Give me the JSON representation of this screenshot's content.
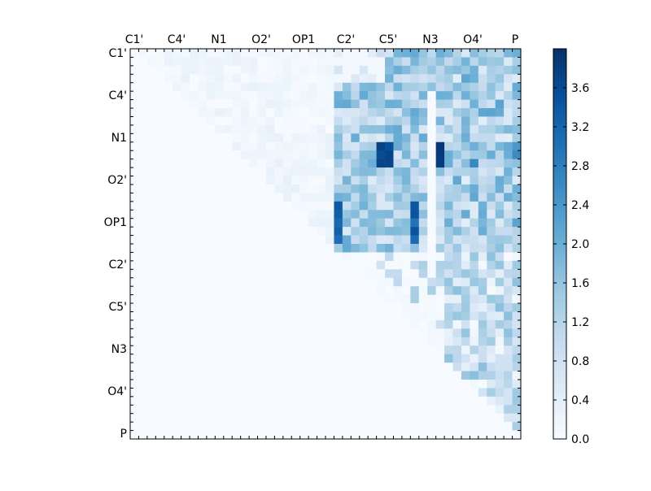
{
  "chart_data": [
    {
      "type": "heatmap",
      "title": "",
      "xlabel": "",
      "ylabel": "",
      "atoms": [
        "C1'",
        "C4'",
        "N1",
        "O2'",
        "OP1",
        "C2'",
        "C5'",
        "N3",
        "O4'",
        "P"
      ],
      "x_tick_labels": [
        "C1'",
        "C4'",
        "N1",
        "O2'",
        "OP1",
        "C2'",
        "C5'",
        "N3",
        "O4'",
        "P"
      ],
      "y_tick_labels": [
        "C1'",
        "C4'",
        "N1",
        "O2'",
        "OP1",
        "C2'",
        "C5'",
        "N3",
        "O4'",
        "P"
      ],
      "x_ticks_position": "top",
      "grid_rows": 46,
      "grid_cols": 46,
      "colormap": "Blues",
      "color_range": [
        0.0,
        4.0
      ],
      "matrix_shape": "upper-triangular",
      "blocks": [
        {
          "region": "top-left (C1' to O2', C1' to O2')",
          "value_range": [
            0.0,
            0.3
          ]
        },
        {
          "region": "C2' to N3 columns, C1' to OP1 rows",
          "value_range": [
            0.4,
            3.9
          ]
        },
        {
          "region": "O4' to P columns, C1' to OP1 rows",
          "value_range": [
            0.4,
            2.6
          ]
        },
        {
          "region": "C2' to P rows, C2' to P columns",
          "value_range": [
            0.0,
            1.7
          ]
        },
        {
          "region": "lower-left below diagonal",
          "value_range": [
            0.0,
            0.0
          ]
        }
      ],
      "notable_values": [
        {
          "row": "N1 (row 11)",
          "col": "N3 (col 36)",
          "value": 3.9
        },
        {
          "row": "N1 (row 11)",
          "col": "C5' (col 29)",
          "value": 3.5
        },
        {
          "row": "OP1 (rows 20-22)",
          "col": "C2' (col 24)",
          "value": 3.6
        },
        {
          "row": "OP1 (rows 18-22)",
          "col": "N3 (col 33)",
          "value": 3.2
        }
      ]
    },
    {
      "type": "colorbar",
      "ticks": [
        "0.0",
        "0.4",
        "0.8",
        "1.2",
        "1.6",
        "2.0",
        "2.4",
        "2.8",
        "3.2",
        "3.6"
      ],
      "range": [
        0.0,
        4.0
      ],
      "colormap": "Blues"
    }
  ]
}
